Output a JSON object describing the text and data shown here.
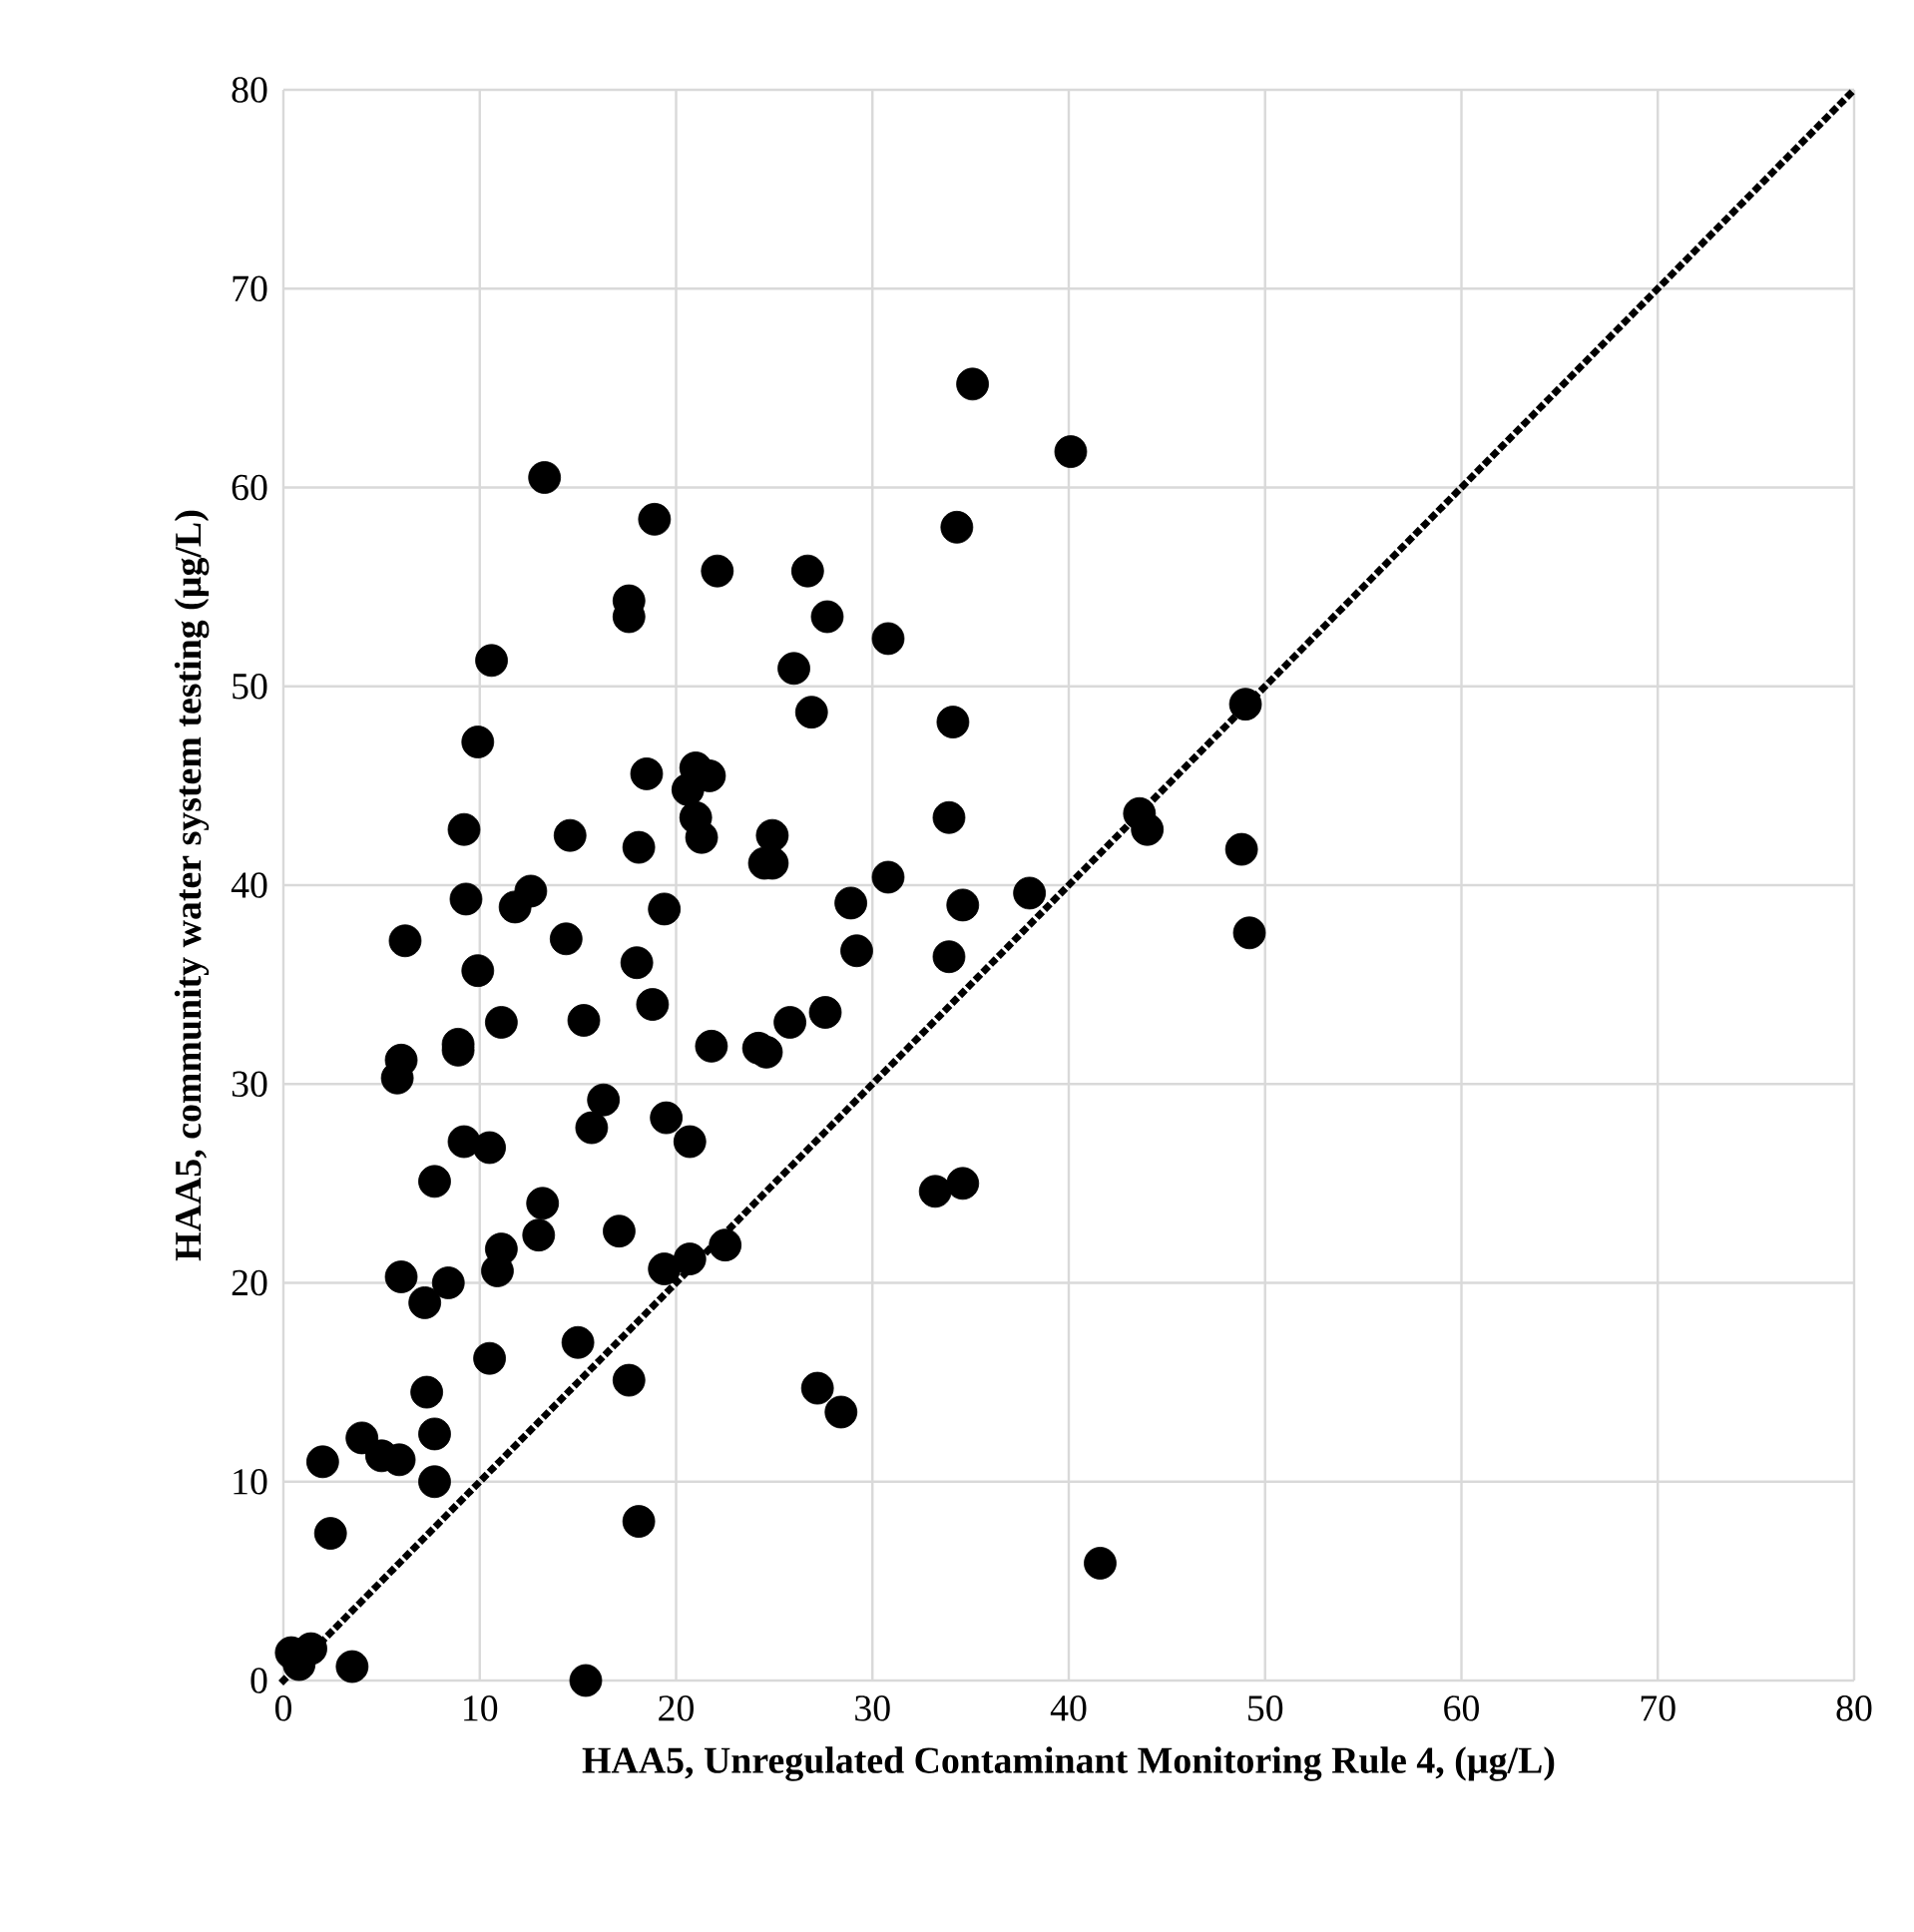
{
  "chart_data": {
    "type": "scatter",
    "xlabel": "HAA5, Unregulated Contaminant Monitoring Rule 4, (µg/L)",
    "ylabel": "HAA5, community water system testing (µg/L)",
    "xlim": [
      0,
      80
    ],
    "ylim": [
      0,
      80
    ],
    "xticks": [
      0,
      10,
      20,
      30,
      40,
      50,
      60,
      70,
      80
    ],
    "yticks": [
      0,
      10,
      20,
      30,
      40,
      50,
      60,
      70,
      80
    ],
    "grid": true,
    "series": [
      {
        "color": "#000000",
        "x": [
          13.3,
          35.1,
          40.1,
          18.9,
          34.3,
          22.1,
          26.7,
          17.6,
          17.6,
          27.7,
          30.8,
          10.6,
          26.0,
          49.0,
          26.9,
          34.1,
          9.9,
          18.5,
          21.7,
          21.0,
          20.6,
          21.0,
          33.9,
          43.6,
          44.0,
          9.2,
          14.6,
          24.9,
          21.3,
          18.1,
          48.8,
          24.5,
          24.9,
          30.8,
          12.6,
          38.0,
          9.3,
          11.8,
          19.4,
          28.9,
          34.6,
          49.2,
          6.2,
          14.4,
          29.2,
          33.9,
          18.0,
          9.9,
          18.8,
          27.6,
          11.1,
          15.3,
          25.8,
          8.9,
          8.9,
          6.0,
          21.8,
          24.2,
          24.6,
          5.8,
          16.3,
          19.5,
          15.7,
          9.2,
          10.5,
          20.7,
          7.7,
          33.2,
          34.6,
          13.2,
          17.1,
          13.0,
          22.5,
          11.1,
          20.7,
          6.0,
          10.9,
          19.4,
          8.4,
          7.2,
          10.5,
          7.3,
          15.0,
          17.6,
          27.2,
          28.4,
          4.0,
          7.7,
          5.0,
          5.9,
          2.0,
          7.7,
          2.4,
          18.1,
          41.6,
          0.4,
          1.4,
          0.8,
          3.5,
          15.4
        ],
        "values": [
          60.5,
          65.2,
          61.8,
          58.4,
          58.0,
          55.8,
          55.8,
          54.3,
          53.5,
          53.5,
          52.4,
          51.3,
          50.9,
          49.1,
          48.7,
          48.2,
          47.2,
          45.6,
          45.5,
          45.9,
          44.8,
          43.4,
          43.4,
          43.6,
          42.8,
          42.8,
          42.5,
          42.5,
          42.4,
          41.9,
          41.8,
          41.1,
          41.1,
          40.4,
          39.7,
          39.6,
          39.3,
          38.9,
          38.8,
          39.1,
          39.0,
          37.6,
          37.2,
          37.3,
          36.7,
          36.4,
          36.1,
          35.7,
          34.0,
          33.6,
          33.1,
          33.2,
          33.1,
          32.0,
          31.7,
          31.2,
          31.9,
          31.8,
          31.6,
          30.3,
          29.2,
          28.3,
          27.8,
          27.1,
          26.8,
          27.1,
          25.1,
          24.6,
          25.0,
          24.0,
          22.6,
          22.4,
          21.9,
          21.7,
          21.2,
          20.3,
          20.6,
          20.7,
          20.0,
          19.0,
          16.2,
          14.5,
          17.0,
          15.1,
          14.7,
          13.5,
          12.2,
          12.4,
          11.3,
          11.1,
          11.0,
          10.0,
          7.4,
          8.0,
          5.9,
          1.4,
          1.6,
          0.8,
          0.7,
          0.0
        ]
      },
      {
        "type": "line",
        "color": "#000000",
        "line_style": "dotted",
        "x": [
          0,
          80
        ],
        "values": [
          0,
          80
        ]
      }
    ]
  }
}
